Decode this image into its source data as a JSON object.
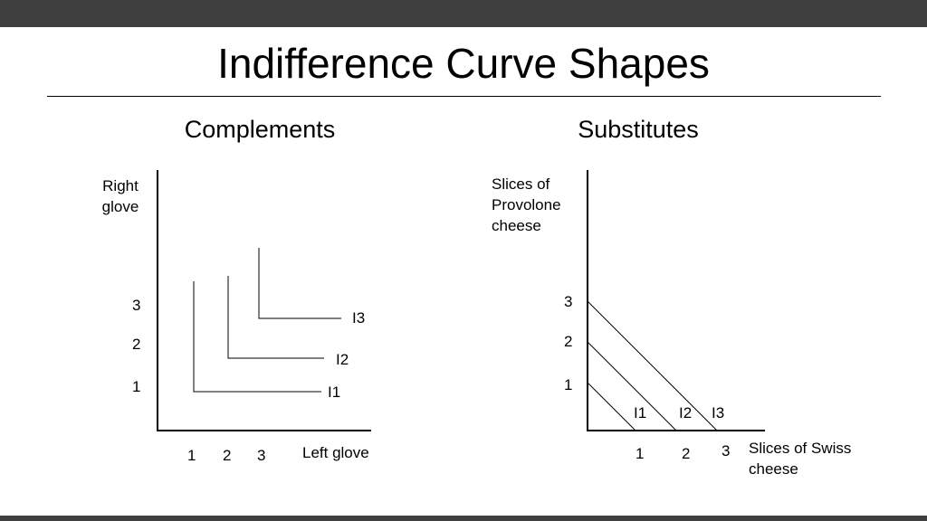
{
  "title": "Indifference Curve Shapes",
  "colors": {
    "bars": "#3f3f3f",
    "background": "#ffffff",
    "ink": "#000000"
  },
  "complements": {
    "heading": "Complements",
    "y_axis_label": "Right\nglove",
    "x_axis_label": "Left glove",
    "y_ticks": [
      "1",
      "2",
      "3"
    ],
    "x_ticks": [
      "1",
      "2",
      "3"
    ],
    "curve_labels": [
      "I1",
      "I2",
      "I3"
    ],
    "curve_type": "L-shaped",
    "curves": [
      {
        "label": "I1",
        "corner": [
          1,
          1
        ]
      },
      {
        "label": "I2",
        "corner": [
          2,
          2
        ]
      },
      {
        "label": "I3",
        "corner": [
          3,
          3
        ]
      }
    ]
  },
  "substitutes": {
    "heading": "Substitutes",
    "y_axis_label": "Slices of\nProvolone\ncheese",
    "x_axis_label": "Slices of Swiss\ncheese",
    "y_ticks": [
      "1",
      "2",
      "3"
    ],
    "x_ticks": [
      "1",
      "2",
      "3"
    ],
    "curve_labels": [
      "I1",
      "I2",
      "I3"
    ],
    "curve_type": "straight lines",
    "curves": [
      {
        "label": "I1",
        "y_intercept": 1,
        "x_intercept": 1
      },
      {
        "label": "I2",
        "y_intercept": 2,
        "x_intercept": 2
      },
      {
        "label": "I3",
        "y_intercept": 3,
        "x_intercept": 3
      }
    ]
  }
}
